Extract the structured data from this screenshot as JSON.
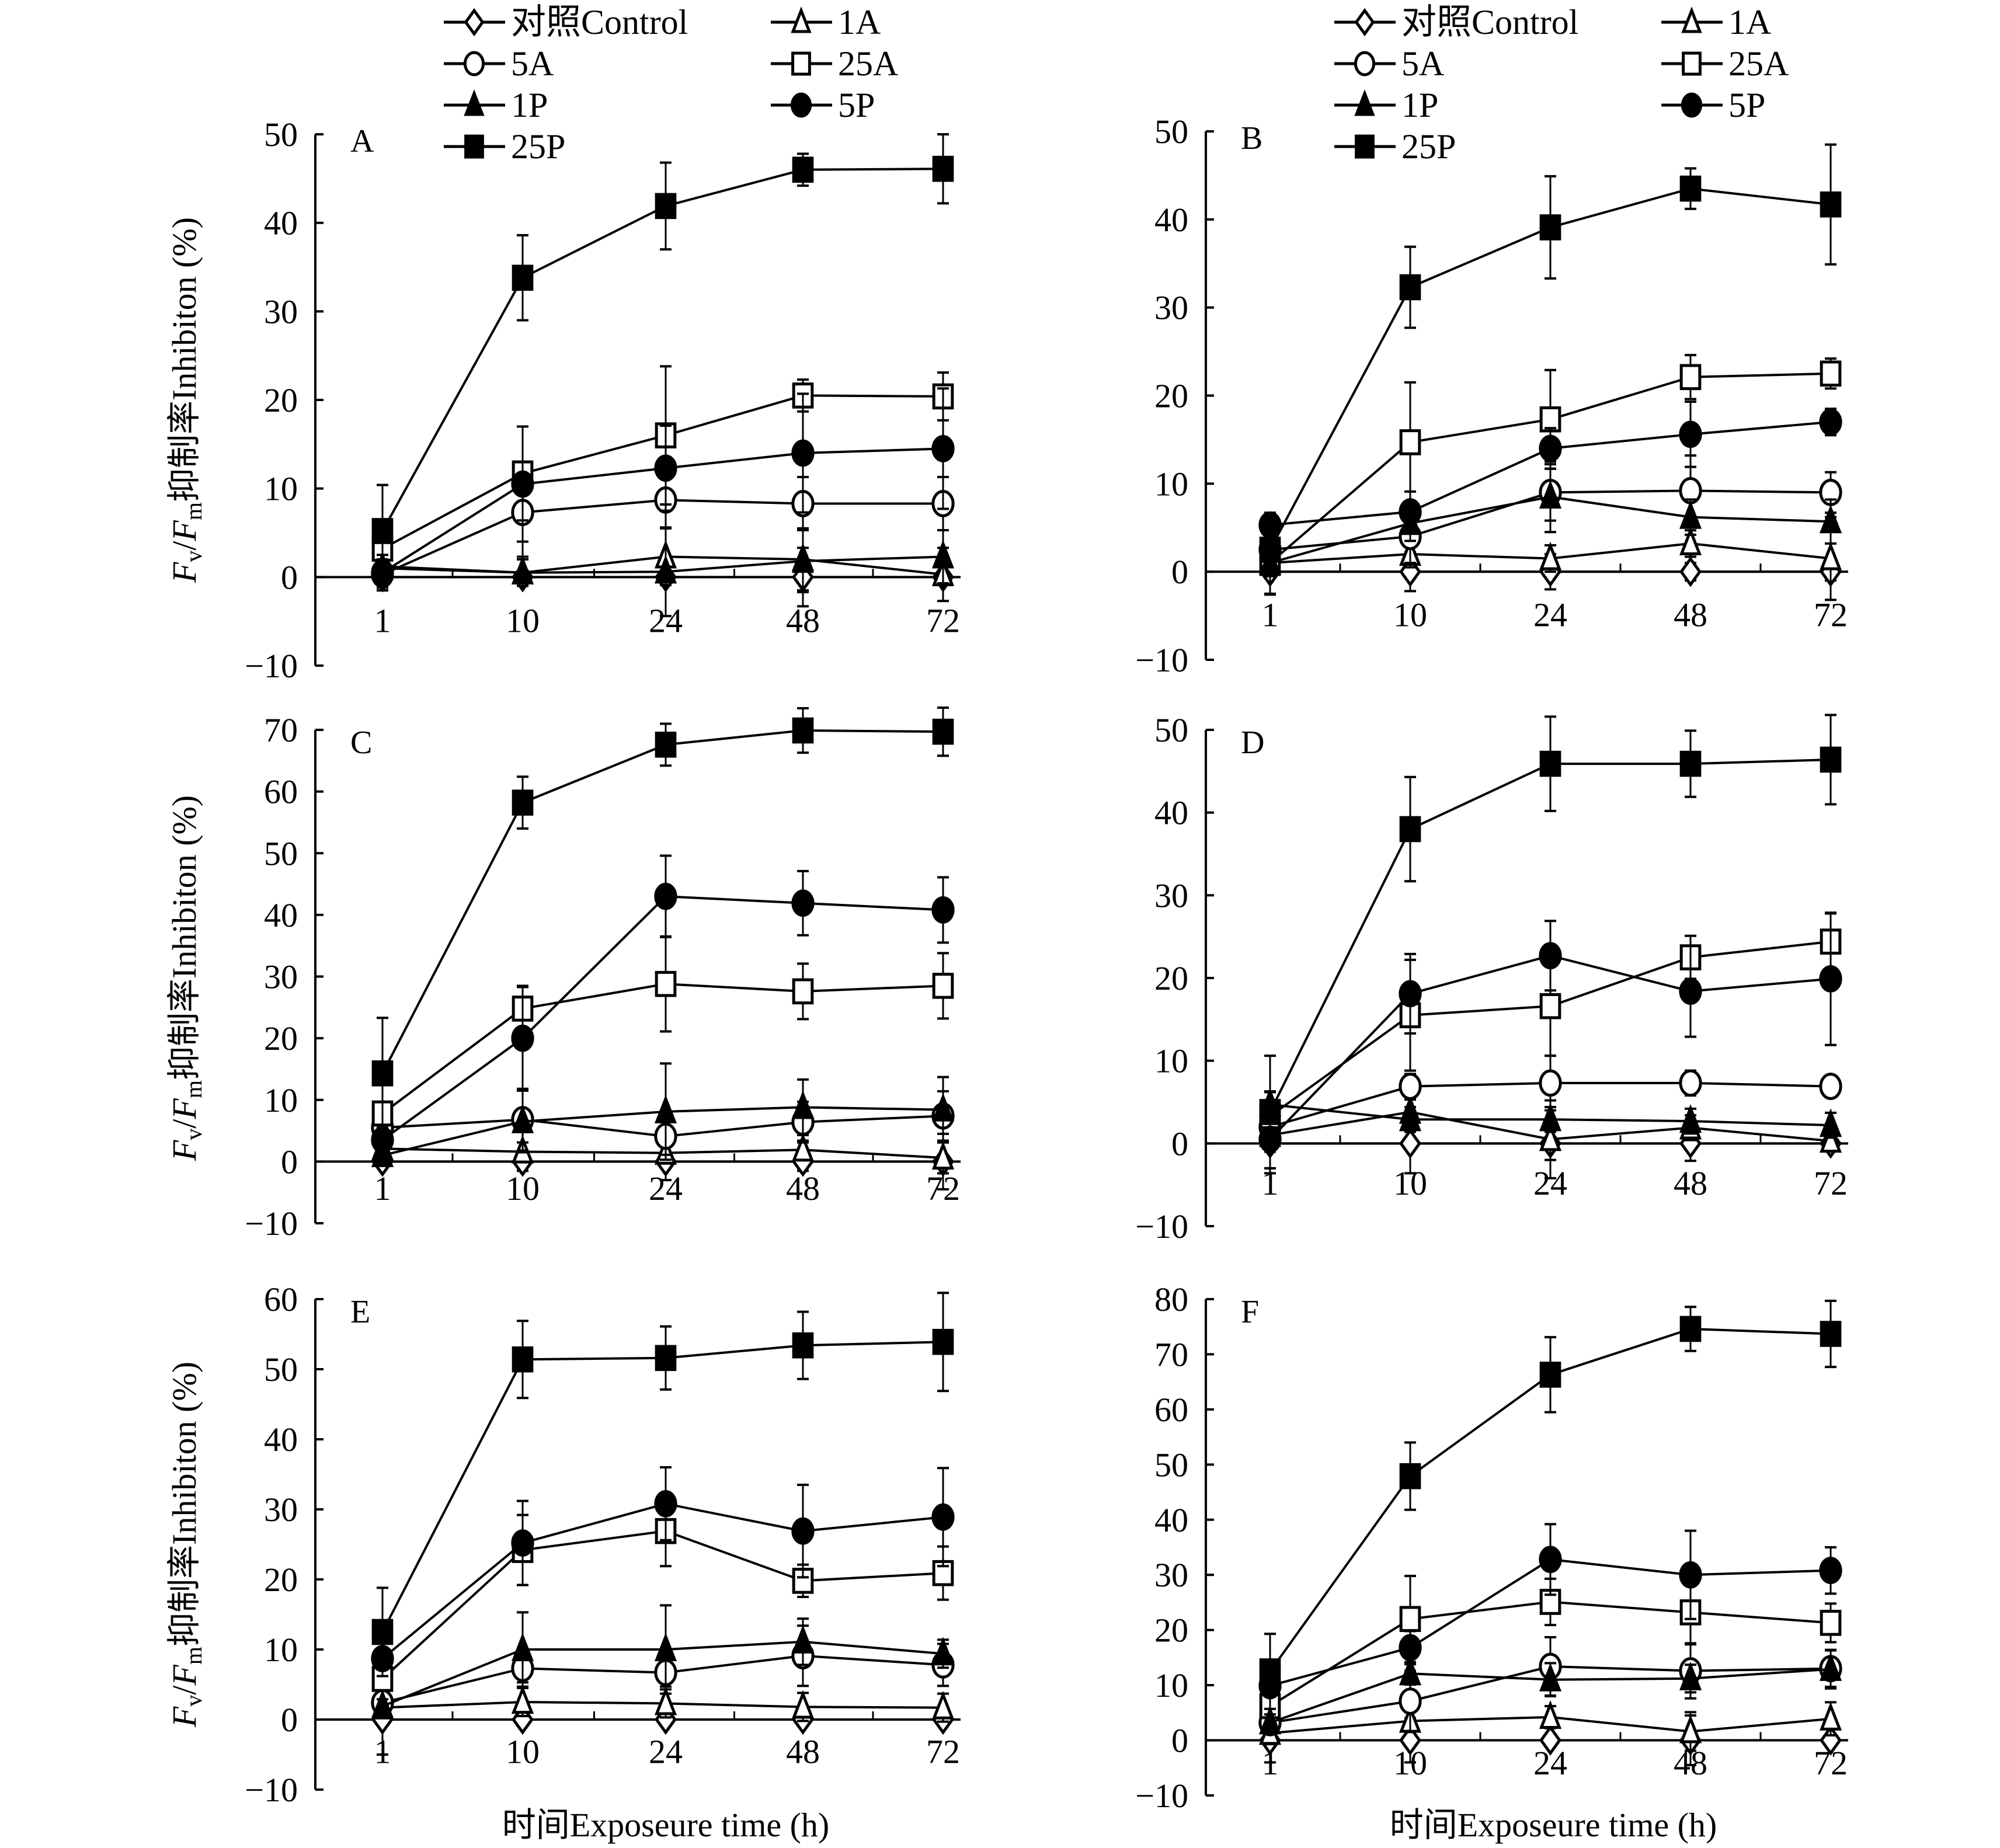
{
  "figure": {
    "x_title": "时间Exposeure time (h)",
    "y_title_parts": {
      "fv": "F",
      "v_sub": "v",
      "slash": "/",
      "fm": "F",
      "m_sub": "m",
      "rest": "抑制率Inhibiton (%)"
    }
  },
  "legend": {
    "entries": [
      {
        "label": "对照Control",
        "marker": "diamond-open"
      },
      {
        "label": "1A",
        "marker": "triangle-open"
      },
      {
        "label": "5A",
        "marker": "circle-open"
      },
      {
        "label": "25A",
        "marker": "square-open"
      },
      {
        "label": "1P",
        "marker": "triangle-filled"
      },
      {
        "label": "5P",
        "marker": "circle-filled"
      },
      {
        "label": "25P",
        "marker": "square-filled"
      }
    ]
  },
  "chart_data": [
    {
      "type": "line",
      "panel": "A",
      "categories": [
        "1",
        "10",
        "24",
        "48",
        "72"
      ],
      "xlabel": "",
      "ylabel": "Fv/Fm抑制率Inhibiton (%)",
      "ylim": [
        -10,
        50
      ],
      "yticks": [
        -10,
        0,
        10,
        20,
        30,
        40,
        50
      ],
      "series": [
        {
          "name": "对照Control",
          "values": [
            0,
            0,
            0,
            0,
            0
          ],
          "error": [
            1.5,
            0.5,
            0.5,
            3.3,
            0.5
          ]
        },
        {
          "name": "1A",
          "values": [
            1.2,
            0.5,
            2.3,
            2.0,
            0.3
          ],
          "error": [
            1,
            1.5,
            3.2,
            3.5,
            3
          ]
        },
        {
          "name": "5A",
          "values": [
            0.3,
            7.3,
            8.7,
            8.3,
            8.3
          ],
          "error": [
            1.5,
            5,
            3.2,
            3,
            3
          ]
        },
        {
          "name": "25A",
          "values": [
            3.2,
            11.7,
            16.0,
            20.5,
            20.4
          ],
          "error": [
            2,
            5.3,
            7.8,
            1.8,
            2.7
          ]
        },
        {
          "name": "1P",
          "values": [
            1.0,
            0.5,
            0.6,
            1.8,
            2.3
          ],
          "error": [
            1,
            1.5,
            5,
            3.5,
            3
          ]
        },
        {
          "name": "5P",
          "values": [
            0.5,
            10.5,
            12.3,
            14.0,
            14.5
          ],
          "error": [
            2,
            6.5,
            4.8,
            6.7,
            6.8
          ]
        },
        {
          "name": "25P",
          "values": [
            5.2,
            33.8,
            41.9,
            46.0,
            46.1
          ],
          "error": [
            5.2,
            4.8,
            4.9,
            1.8,
            3.9
          ]
        }
      ]
    },
    {
      "type": "line",
      "panel": "B",
      "categories": [
        "1",
        "10",
        "24",
        "48",
        "72"
      ],
      "xlabel": "",
      "ylabel": "",
      "ylim": [
        -10,
        50
      ],
      "yticks": [
        -10,
        0,
        10,
        20,
        30,
        40,
        50
      ],
      "series": [
        {
          "name": "对照Control",
          "values": [
            0,
            0,
            0,
            0,
            0
          ],
          "error": [
            2.5,
            2.2,
            2.0,
            1.0,
            1.0
          ]
        },
        {
          "name": "1A",
          "values": [
            1.0,
            2.0,
            1.5,
            3.2,
            1.5
          ],
          "error": [
            1.5,
            1.5,
            1.5,
            1.5,
            4.7
          ]
        },
        {
          "name": "5A",
          "values": [
            2.5,
            4.0,
            9.0,
            9.2,
            9.0
          ],
          "error": [
            1.5,
            3,
            3.2,
            4,
            2.3
          ]
        },
        {
          "name": "25A",
          "values": [
            1.0,
            14.7,
            17.3,
            22.1,
            22.5
          ],
          "error": [
            3.6,
            6.8,
            5.6,
            2.5,
            1.7
          ]
        },
        {
          "name": "1P",
          "values": [
            1.0,
            5.5,
            8.5,
            6.2,
            5.7
          ],
          "error": [
            1.5,
            2,
            4,
            2,
            2.5
          ]
        },
        {
          "name": "5P",
          "values": [
            5.3,
            6.8,
            14.0,
            15.6,
            17.0
          ],
          "error": [
            1.4,
            2.3,
            2.3,
            3.7,
            1.5
          ]
        },
        {
          "name": "25P",
          "values": [
            2.5,
            32.3,
            39.1,
            43.5,
            41.7
          ],
          "error": [
            1.5,
            4.6,
            5.8,
            2.3,
            6.8
          ]
        }
      ]
    },
    {
      "type": "line",
      "panel": "C",
      "categories": [
        "1",
        "10",
        "24",
        "48",
        "72"
      ],
      "xlabel": "",
      "ylabel": "Fv/Fm抑制率Inhibiton (%)",
      "ylim": [
        -10,
        70
      ],
      "yticks": [
        -10,
        0,
        10,
        20,
        30,
        40,
        50,
        60,
        70
      ],
      "series": [
        {
          "name": "对照Control",
          "values": [
            0,
            0,
            0,
            0,
            0
          ],
          "error": [
            1,
            1.5,
            3,
            1.5,
            4.5
          ]
        },
        {
          "name": "1A",
          "values": [
            2.1,
            1.6,
            1.4,
            1.9,
            0.6
          ],
          "error": [
            2,
            1.5,
            1.5,
            1.5,
            2.5
          ]
        },
        {
          "name": "5A",
          "values": [
            5.5,
            6.8,
            4.1,
            6.4,
            7.4
          ],
          "error": [
            1.5,
            5,
            3,
            3.3,
            4
          ]
        },
        {
          "name": "25A",
          "values": [
            7.8,
            24.8,
            28.8,
            27.6,
            28.5
          ],
          "error": [
            1.5,
            3.5,
            7.7,
            4.5,
            5.3
          ]
        },
        {
          "name": "1P",
          "values": [
            1.0,
            6.5,
            8.1,
            8.8,
            8.4
          ],
          "error": [
            1.5,
            5,
            7.8,
            4.5,
            5.3
          ]
        },
        {
          "name": "5P",
          "values": [
            3.5,
            20.0,
            43.0,
            41.9,
            40.8
          ],
          "error": [
            2,
            8.5,
            6.6,
            5.2,
            5.3
          ]
        },
        {
          "name": "25P",
          "values": [
            14.3,
            58.2,
            67.6,
            69.9,
            69.7
          ],
          "error": [
            9,
            4.2,
            3.4,
            3.6,
            3.9
          ]
        }
      ]
    },
    {
      "type": "line",
      "panel": "D",
      "categories": [
        "1",
        "10",
        "24",
        "48",
        "72"
      ],
      "xlabel": "",
      "ylabel": "",
      "ylim": [
        -10,
        50
      ],
      "yticks": [
        -10,
        0,
        10,
        20,
        30,
        40,
        50
      ],
      "series": [
        {
          "name": "对照Control",
          "values": [
            0,
            0,
            0,
            0,
            0
          ],
          "error": [
            3.6,
            3.6,
            2,
            2.1,
            0.5
          ]
        },
        {
          "name": "1A",
          "values": [
            1.0,
            3.8,
            0.5,
            1.9,
            0.3
          ],
          "error": [
            2,
            1.5,
            4.7,
            1.5,
            1
          ]
        },
        {
          "name": "5A",
          "values": [
            2.0,
            6.9,
            7.3,
            7.3,
            6.9
          ],
          "error": [
            1.5,
            1.5,
            3.3,
            1.5,
            0
          ]
        },
        {
          "name": "25A",
          "values": [
            3.3,
            15.5,
            16.6,
            22.5,
            24.4
          ],
          "error": [
            3,
            6.7,
            6,
            2.6,
            3.4
          ]
        },
        {
          "name": "1P",
          "values": [
            4.7,
            2.9,
            2.9,
            2.7,
            2.2
          ],
          "error": [
            1.5,
            1.5,
            1.5,
            1.5,
            1.5
          ]
        },
        {
          "name": "5P",
          "values": [
            0.5,
            18.1,
            22.7,
            18.4,
            19.9
          ],
          "error": [
            3.5,
            4.8,
            4.2,
            5.5,
            8
          ]
        },
        {
          "name": "25P",
          "values": [
            3.8,
            38.0,
            45.9,
            45.9,
            46.4
          ],
          "error": [
            6.8,
            6.3,
            5.7,
            4,
            5.4
          ]
        }
      ]
    },
    {
      "type": "line",
      "panel": "E",
      "categories": [
        "1",
        "10",
        "24",
        "48",
        "72"
      ],
      "xlabel": "时间Exposeure time (h)",
      "ylabel": "Fv/Fm抑制率Inhibiton (%)",
      "ylim": [
        -10,
        60
      ],
      "yticks": [
        -10,
        0,
        10,
        20,
        30,
        40,
        50,
        60
      ],
      "series": [
        {
          "name": "对照Control",
          "values": [
            0,
            0,
            0,
            0,
            0
          ],
          "error": [
            5,
            0.5,
            0.5,
            0.5,
            0.5
          ]
        },
        {
          "name": "1A",
          "values": [
            1.7,
            2.5,
            2.3,
            1.8,
            1.7
          ],
          "error": [
            1,
            2,
            2,
            2,
            2
          ]
        },
        {
          "name": "5A",
          "values": [
            2.4,
            7.3,
            6.7,
            9.1,
            7.8
          ],
          "error": [
            1,
            2,
            2,
            4.3,
            3
          ]
        },
        {
          "name": "25A",
          "values": [
            5.8,
            24.2,
            26.9,
            19.8,
            20.9
          ],
          "error": [
            1,
            5,
            5,
            2.3,
            3.8
          ]
        },
        {
          "name": "1P",
          "values": [
            1.9,
            10.0,
            10.0,
            11.1,
            9.4
          ],
          "error": [
            1,
            5.3,
            6.3,
            3.3,
            2
          ]
        },
        {
          "name": "5P",
          "values": [
            8.7,
            25.2,
            30.8,
            26.9,
            28.9
          ],
          "error": [
            1.5,
            6,
            5.2,
            6.6,
            7
          ]
        },
        {
          "name": "25P",
          "values": [
            12.5,
            51.4,
            51.6,
            53.4,
            53.9
          ],
          "error": [
            6.3,
            5.5,
            4.5,
            4.8,
            7
          ]
        }
      ]
    },
    {
      "type": "line",
      "panel": "F",
      "categories": [
        "1",
        "10",
        "24",
        "48",
        "72"
      ],
      "xlabel": "时间Exposeure time (h)",
      "ylabel": "",
      "ylim": [
        -10,
        80
      ],
      "yticks": [
        -10,
        0,
        10,
        20,
        30,
        40,
        50,
        60,
        70,
        80
      ],
      "series": [
        {
          "name": "对照Control",
          "values": [
            0,
            0,
            0,
            0,
            0
          ],
          "error": [
            4,
            4,
            0.5,
            4.5,
            0.5
          ]
        },
        {
          "name": "1A",
          "values": [
            1.3,
            3.5,
            4.2,
            1.6,
            3.9
          ],
          "error": [
            2,
            2,
            2,
            3.5,
            3
          ]
        },
        {
          "name": "5A",
          "values": [
            3.2,
            7.1,
            13.4,
            12.6,
            13.0
          ],
          "error": [
            1.5,
            5.5,
            5.3,
            5,
            3.3
          ]
        },
        {
          "name": "25A",
          "values": [
            6.2,
            22.0,
            25.1,
            23.2,
            21.3
          ],
          "error": [
            2,
            7.8,
            4.2,
            5.8,
            3.5
          ]
        },
        {
          "name": "1P",
          "values": [
            3.2,
            12.1,
            11.0,
            11.2,
            12.9
          ],
          "error": [
            1.5,
            2,
            3,
            2.5,
            3.5
          ]
        },
        {
          "name": "5P",
          "values": [
            9.9,
            16.8,
            32.8,
            30.0,
            30.8
          ],
          "error": [
            1.5,
            3,
            6.4,
            8,
            4.2
          ]
        },
        {
          "name": "25P",
          "values": [
            12.5,
            47.9,
            66.3,
            74.6,
            73.7
          ],
          "error": [
            6.8,
            6.1,
            6.8,
            4,
            6
          ]
        }
      ]
    }
  ]
}
